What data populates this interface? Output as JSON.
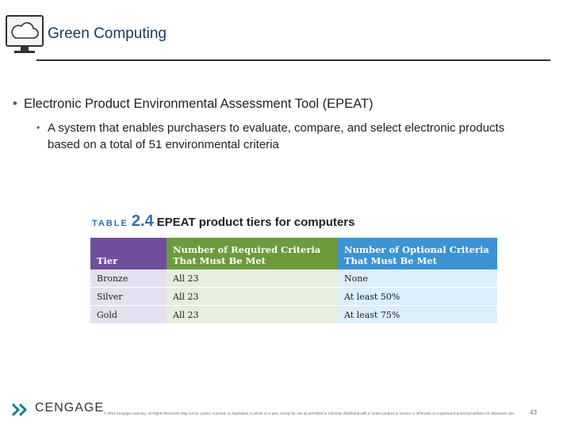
{
  "header": {
    "title": "Green Computing"
  },
  "bullets": [
    {
      "text": "Electronic Product Environmental Assessment Tool (EPEAT)",
      "subbullets": [
        "A system that enables purchasers to evaluate, compare, and select electronic products based on a total of 51 environmental criteria"
      ]
    }
  ],
  "table": {
    "label": "TABLE",
    "number": "2.4",
    "caption": "EPEAT product tiers for computers",
    "columns": [
      "Tier",
      "Number of Required Criteria That Must Be Met",
      "Number of Optional Criteria That Must Be Met"
    ],
    "rows": [
      [
        "Bronze",
        "All 23",
        "None"
      ],
      [
        "Silver",
        "All 23",
        "At least 50%"
      ],
      [
        "Gold",
        "All 23",
        "At least 75%"
      ]
    ]
  },
  "footer": {
    "logo": "CENGAGE",
    "copyright": "© 2018 Cengage Learning. All Rights Reserved. May not be copied, scanned, or duplicated, in whole or in part, except for use as permitted in a license distributed with a certain product or service or otherwise on a password-protected website for classroom use.",
    "page": "43"
  }
}
